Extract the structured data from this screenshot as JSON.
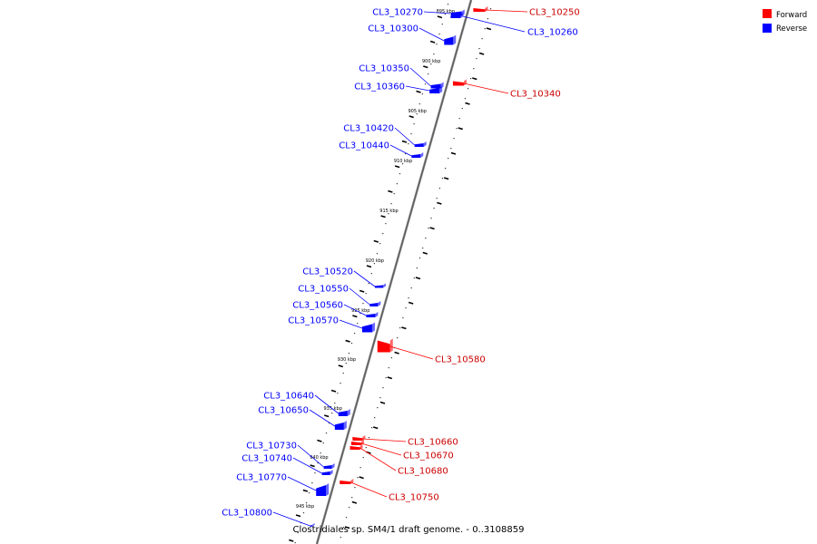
{
  "title": "Clostridiales sp. SM4/1 draft genome. - 0..3108859",
  "legend": [
    {
      "label": "Forward",
      "color": "#ff0000"
    },
    {
      "label": "Reverse",
      "color": "#0000ff"
    }
  ],
  "scale_labels": [
    "895 kbp",
    "900 kbp",
    "905 kbp",
    "910 kbp",
    "915 kbp",
    "920 kbp",
    "925 kbp",
    "930 kbp",
    "935 kbp",
    "940 kbp",
    "945 kbp"
  ],
  "genes_forward": [
    "CL3_10250",
    "CL3_10340",
    "CL3_10580",
    "CL3_10660",
    "CL3_10670",
    "CL3_10680",
    "CL3_10750"
  ],
  "genes_reverse": [
    "CL3_10270",
    "CL3_10260",
    "CL3_10300",
    "CL3_10350",
    "CL3_10360",
    "CL3_10420",
    "CL3_10440",
    "CL3_10520",
    "CL3_10550",
    "CL3_10560",
    "CL3_10570",
    "CL3_10640",
    "CL3_10650",
    "CL3_10730",
    "CL3_10740",
    "CL3_10770",
    "CL3_10800"
  ]
}
